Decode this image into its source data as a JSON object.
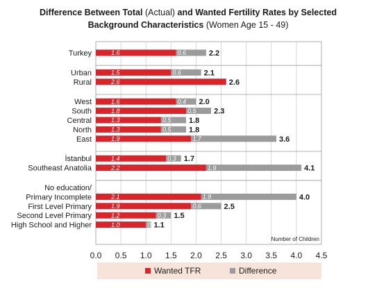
{
  "chart_data": {
    "type": "bar",
    "orientation": "horizontal",
    "stacked": true,
    "title": {
      "bold1": "Difference Between Total",
      "normal1": "(Actual)",
      "bold2": "and  Wanted Fertility Rates by Selected",
      "bold3": "Background Characteristics",
      "normal2": "(Women Age 15 - 49)"
    },
    "axis_note": "Number of Children",
    "xlim": [
      0,
      4.5
    ],
    "xticks": [
      "0.0",
      "0.5",
      "1.0",
      "1.5",
      "2.0",
      "2.5",
      "3.0",
      "3.5",
      "4.0",
      "4.5"
    ],
    "grid": "vertical",
    "legend_position": "bottom",
    "colors": {
      "wanted": "#d7262b",
      "difference": "#9b9b9b",
      "legend_bg": "#f6e3da"
    },
    "series": [
      {
        "name": "Wanted TFR",
        "color": "#d7262b"
      },
      {
        "name": "Difference",
        "color": "#9b9b9b"
      }
    ],
    "groups": [
      {
        "categories": [
          {
            "label": [
              "Turkey"
            ],
            "wanted": 1.6,
            "difference": 0.6,
            "total": 2.2,
            "wanted_label": "1.6",
            "difference_label": "0.6",
            "total_label": "2.2"
          }
        ]
      },
      {
        "categories": [
          {
            "label": [
              "Urban"
            ],
            "wanted": 1.5,
            "difference": 0.6,
            "total": 2.1,
            "wanted_label": "1.5",
            "difference_label": "0.6",
            "total_label": "2.1"
          },
          {
            "label": [
              "Rural"
            ],
            "wanted": 2.6,
            "difference": 0.0,
            "total": 2.6,
            "wanted_label": "2.6",
            "difference_label": "",
            "total_label": "2.6"
          }
        ]
      },
      {
        "categories": [
          {
            "label": [
              "West"
            ],
            "wanted": 1.6,
            "difference": 0.4,
            "total": 2.0,
            "wanted_label": "1.6",
            "difference_label": "0.4",
            "total_label": "2.0"
          },
          {
            "label": [
              "South"
            ],
            "wanted": 1.8,
            "difference": 0.5,
            "total": 2.3,
            "wanted_label": "1.8",
            "difference_label": "0.5",
            "total_label": "2.3"
          },
          {
            "label": [
              "Central"
            ],
            "wanted": 1.3,
            "difference": 0.5,
            "total": 1.8,
            "wanted_label": "1.3",
            "difference_label": "0.5",
            "total_label": "1.8"
          },
          {
            "label": [
              "North"
            ],
            "wanted": 1.3,
            "difference": 0.5,
            "total": 1.8,
            "wanted_label": "1.3",
            "difference_label": "0.5",
            "total_label": "1.8"
          },
          {
            "label": [
              "East"
            ],
            "wanted": 1.9,
            "difference": 1.7,
            "total": 3.6,
            "wanted_label": "1.9",
            "difference_label": "1.7",
            "total_label": "3.6"
          }
        ]
      },
      {
        "categories": [
          {
            "label": [
              "İstanbul"
            ],
            "wanted": 1.4,
            "difference": 0.3,
            "total": 1.7,
            "wanted_label": "1.4",
            "difference_label": "0.3",
            "total_label": "1.7"
          },
          {
            "label": [
              "Southeast Anatolia"
            ],
            "wanted": 2.2,
            "difference": 1.9,
            "total": 4.1,
            "wanted_label": "2.2",
            "difference_label": "1.9",
            "total_label": "4.1"
          }
        ]
      },
      {
        "categories": [
          {
            "label": [
              "No education/",
              "Primary Incomplete"
            ],
            "wanted": 2.1,
            "difference": 1.9,
            "total": 4.0,
            "wanted_label": "2.1",
            "difference_label": "1.9",
            "total_label": "4.0"
          },
          {
            "label": [
              "First Level Primary"
            ],
            "wanted": 1.9,
            "difference": 0.6,
            "total": 2.5,
            "wanted_label": "1.9",
            "difference_label": "0.6",
            "total_label": "2.5"
          },
          {
            "label": [
              "Second Level Primary"
            ],
            "wanted": 1.2,
            "difference": 0.3,
            "total": 1.5,
            "wanted_label": "1.2",
            "difference_label": "0.3",
            "total_label": "1.5"
          },
          {
            "label": [
              "High School and Higher"
            ],
            "wanted": 1.0,
            "difference": 0.1,
            "total": 1.1,
            "wanted_label": "1.0",
            "difference_label": "0.1",
            "total_label": "1.1"
          }
        ]
      }
    ]
  }
}
